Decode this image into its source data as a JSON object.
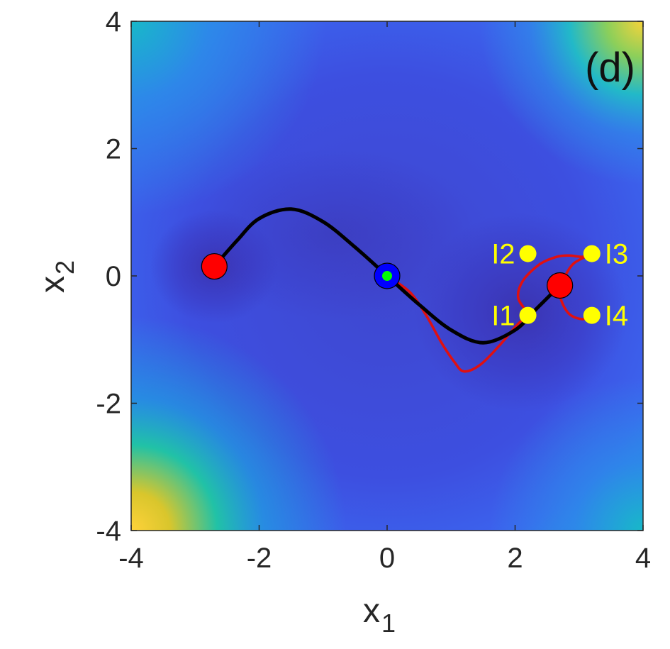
{
  "chart_data": {
    "type": "contour",
    "panel_label": "(d)",
    "xlabel": "x",
    "xlabel_sub": "1",
    "ylabel": "x",
    "ylabel_sub": "2",
    "xlim": [
      -4,
      4
    ],
    "ylim": [
      -4,
      4
    ],
    "xticks": [
      -4,
      -2,
      0,
      2,
      4
    ],
    "yticks": [
      -4,
      -2,
      0,
      2,
      4
    ],
    "grid": false,
    "colors": {
      "min_path": "#000000",
      "red_path": "#e01010",
      "minima_marker": "#ff0000",
      "saddle_outer": "#0000ff",
      "saddle_inner": "#00ff00",
      "start_points": "#ffff00"
    },
    "minima": [
      {
        "x": -2.7,
        "y": 0.15
      },
      {
        "x": 2.7,
        "y": -0.15
      }
    ],
    "saddle": {
      "x": 0.0,
      "y": 0.0
    },
    "min_energy_path": [
      [
        -2.7,
        0.15
      ],
      [
        -2.35,
        0.55
      ],
      [
        -2.0,
        0.9
      ],
      [
        -1.5,
        1.05
      ],
      [
        -1.0,
        0.85
      ],
      [
        -0.5,
        0.45
      ],
      [
        0.0,
        0.0
      ],
      [
        0.5,
        -0.45
      ],
      [
        1.0,
        -0.85
      ],
      [
        1.5,
        -1.05
      ],
      [
        2.0,
        -0.85
      ],
      [
        2.35,
        -0.5
      ],
      [
        2.7,
        -0.15
      ]
    ],
    "red_path_from_saddle": [
      [
        0.0,
        0.0
      ],
      [
        0.35,
        -0.25
      ],
      [
        0.6,
        -0.6
      ],
      [
        0.85,
        -1.05
      ],
      [
        1.05,
        -1.35
      ],
      [
        1.2,
        -1.5
      ],
      [
        1.45,
        -1.4
      ],
      [
        1.75,
        -1.1
      ],
      [
        2.05,
        -0.75
      ],
      [
        2.25,
        -0.6
      ]
    ],
    "red_loop": [
      [
        2.22,
        -0.6
      ],
      [
        2.05,
        -0.35
      ],
      [
        2.12,
        -0.08
      ],
      [
        2.38,
        0.18
      ],
      [
        2.65,
        0.3
      ],
      [
        2.85,
        0.32
      ],
      [
        3.05,
        0.3
      ],
      [
        3.2,
        0.35
      ],
      [
        2.92,
        0.2
      ],
      [
        2.78,
        0.0
      ],
      [
        2.7,
        -0.15
      ],
      [
        2.72,
        -0.38
      ],
      [
        2.85,
        -0.6
      ],
      [
        3.05,
        -0.68
      ],
      [
        3.2,
        -0.62
      ]
    ],
    "initial_points": [
      {
        "label": "I1",
        "x": 2.2,
        "y": -0.62
      },
      {
        "label": "I2",
        "x": 2.2,
        "y": 0.35
      },
      {
        "label": "I3",
        "x": 3.2,
        "y": 0.35
      },
      {
        "label": "I4",
        "x": 3.2,
        "y": -0.62
      }
    ]
  }
}
